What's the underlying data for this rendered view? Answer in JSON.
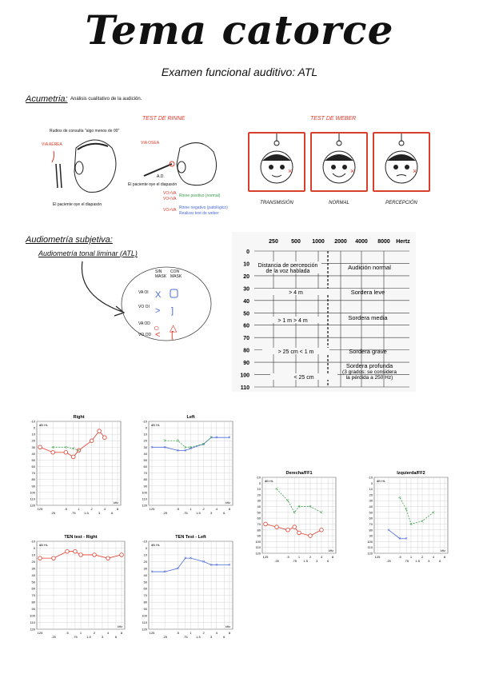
{
  "title": "Tema catorce",
  "subtitle": "Examen funcional auditivo: ATL",
  "acumetria": {
    "heading": "Acumetria:",
    "desc": "Análisis cualitativo de la audición.",
    "rinne": {
      "title": "TEST DE RINNE",
      "note1": "Rudios de consulta \"algo menos de 00\"",
      "va": "VIA AÉREA",
      "vo": "VIA OSEA",
      "ad": "A.D.",
      "note2": "El paciente oye el diapasón",
      "note3": "El paciente oye el diapasón",
      "vo1": "VO>VA",
      "vo2": "VO<VA",
      "r1": "Rinne positivo (normal)",
      "vo3": "VO>VA",
      "r2": "Rinne negativo (patológico)",
      "r3": "Realizar test de weber"
    },
    "weber": {
      "title": "TEST DE WEBER",
      "labels": [
        "TRANSMISIÓN",
        "NORMAL",
        "PERCEPCIÓN"
      ]
    }
  },
  "audiometria": {
    "heading": "Audiometría subjetiva:",
    "sub": "Audiometría tonal liminar (ATL)",
    "legend": {
      "sin": "SIN",
      "mask1": "MASK",
      "con": "CON",
      "mask2": "MASK",
      "rows": [
        "VA OI",
        "VO OI",
        "VA OD",
        "VO OD"
      ]
    }
  },
  "table": {
    "freqs": [
      "250",
      "500",
      "1000",
      "2000",
      "4000",
      "8000",
      "Hertz"
    ],
    "db": [
      "0",
      "10",
      "20",
      "30",
      "40",
      "50",
      "60",
      "70",
      "80",
      "90",
      "100",
      "110"
    ],
    "left_text": [
      "Distancia de percepción",
      "de la voz hablada",
      "> 4 m",
      "> 1 m > 4 m",
      "> 25 cm < 1 m",
      "< 25 cm"
    ],
    "right_text": [
      "Audición normal",
      "Sordera leve",
      "Sordera media",
      "Sordera grave",
      "Sordera profunda",
      "(3 grados: se considera",
      "la pérdida a 250 Hz)"
    ]
  },
  "charts": {
    "xticks": [
      "125",
      ".25",
      ".5",
      ".75",
      "1",
      "1.5",
      "2",
      "3",
      "4",
      "6",
      "8"
    ],
    "yticks": [
      "-10",
      "0",
      "10",
      "20",
      "30",
      "40",
      "50",
      "60",
      "70",
      "80",
      "90",
      "100",
      "110",
      "120"
    ],
    "dbhl": "dB HL",
    "khz": "kHz",
    "titles": [
      "Right",
      "Left",
      "TEN test - Right",
      "TEN Test - Left",
      "Derecha/FF1",
      "Izquierda/FF2"
    ]
  },
  "chart_data": [
    {
      "type": "line",
      "title": "Right",
      "ylim": [
        -10,
        120
      ],
      "series": [
        {
          "name": "",
          "x": [
            125,
            250,
            500,
            750,
            1000,
            2000,
            3000,
            4000
          ],
          "values": [
            30,
            38,
            38,
            45,
            35,
            20,
            5,
            15
          ]
        },
        {
          "name": "",
          "x": [
            250,
            500,
            750,
            1000
          ],
          "values": [
            30,
            30,
            32,
            35
          ]
        }
      ]
    },
    {
      "type": "line",
      "title": "Left",
      "ylim": [
        -10,
        120
      ],
      "series": [
        {
          "name": "",
          "x": [
            125,
            250,
            500,
            750,
            1000,
            2000,
            3000,
            4000,
            8000
          ],
          "values": [
            30,
            30,
            35,
            35,
            32,
            25,
            15,
            15,
            15
          ]
        },
        {
          "name": "",
          "x": [
            250,
            500,
            750,
            1000,
            2000,
            3000
          ],
          "values": [
            20,
            20,
            30,
            30,
            25,
            15
          ]
        }
      ]
    },
    {
      "type": "line",
      "title": "TEN test - Right",
      "ylim": [
        -10,
        120
      ],
      "series": [
        {
          "name": "",
          "x": [
            125,
            250,
            500,
            750,
            1000,
            2000,
            4000,
            8000
          ],
          "values": [
            15,
            15,
            5,
            5,
            10,
            10,
            15,
            10
          ]
        }
      ]
    },
    {
      "type": "line",
      "title": "TEN Test - Left",
      "ylim": [
        -10,
        120
      ],
      "series": [
        {
          "name": "",
          "x": [
            125,
            250,
            500,
            750,
            1000,
            2000,
            3000,
            4000,
            8000
          ],
          "values": [
            35,
            35,
            30,
            15,
            15,
            20,
            25,
            25,
            25
          ]
        }
      ]
    },
    {
      "type": "line",
      "title": "Derecha/FF1",
      "ylim": [
        -10,
        120
      ],
      "series": [
        {
          "name": "",
          "x": [
            125,
            250,
            500,
            750,
            1000,
            2000,
            4000
          ],
          "values": [
            70,
            75,
            80,
            75,
            85,
            90,
            80
          ]
        },
        {
          "name": "",
          "x": [
            250,
            500,
            750,
            1000,
            2000,
            4000
          ],
          "values": [
            10,
            30,
            50,
            40,
            40,
            50
          ]
        }
      ]
    },
    {
      "type": "line",
      "title": "Izquierda/FF2",
      "ylim": [
        -10,
        120
      ],
      "series": [
        {
          "name": "",
          "x": [
            250,
            500,
            750
          ],
          "values": [
            80,
            95,
            95
          ]
        },
        {
          "name": "",
          "x": [
            500,
            750,
            1000,
            2000,
            4000
          ],
          "values": [
            25,
            45,
            70,
            65,
            50
          ]
        }
      ]
    }
  ]
}
